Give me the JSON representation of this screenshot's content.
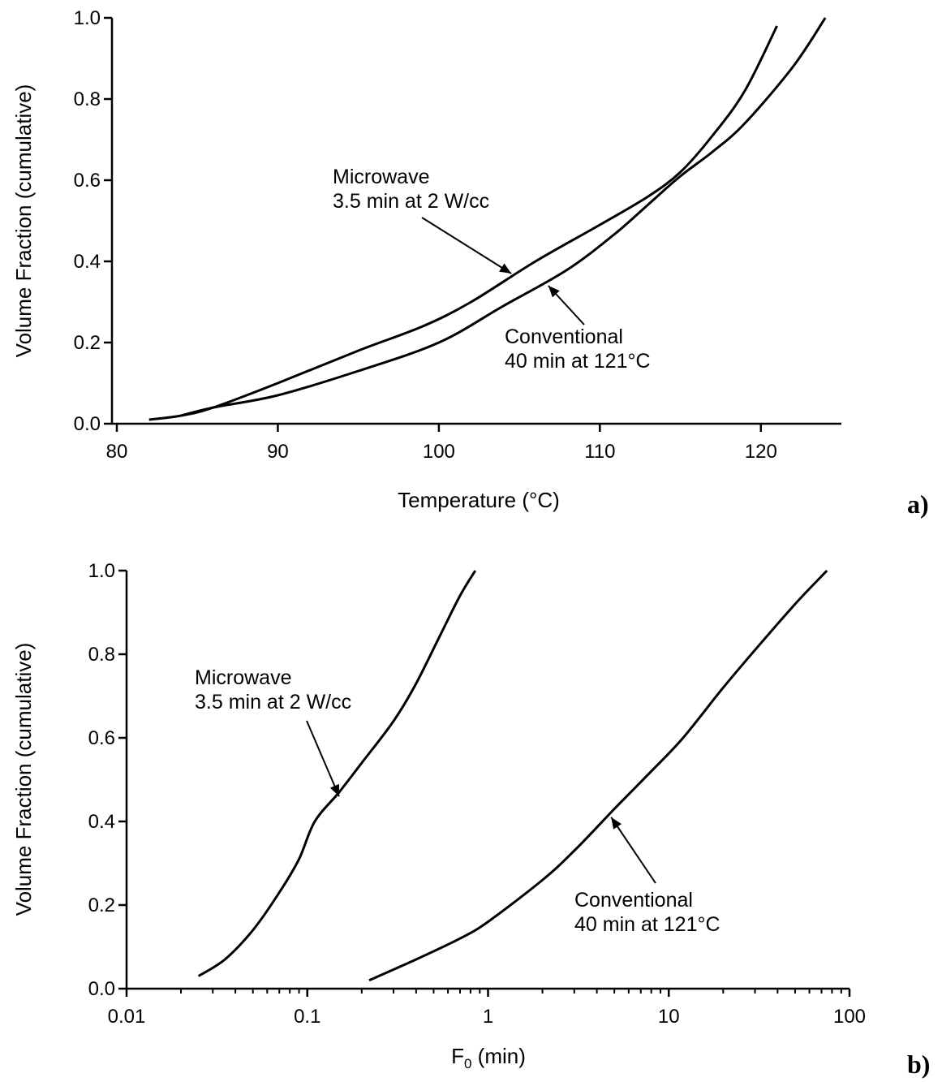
{
  "chart_data": [
    {
      "type": "line",
      "panel_label": "a)",
      "xlabel": "Temperature (°C)",
      "ylabel": "Volume Fraction (cumulative)",
      "xscale": "linear",
      "xlim": [
        80,
        125
      ],
      "ylim": [
        0,
        1.0
      ],
      "xticks": [
        80,
        90,
        100,
        110,
        120
      ],
      "xtick_labels": [
        "80",
        "90",
        "100",
        "110",
        "120"
      ],
      "yticks": [
        0,
        0.2,
        0.4,
        0.6,
        0.8,
        1.0
      ],
      "ytick_labels": [
        "0.0",
        "0.2",
        "0.4",
        "0.6",
        "0.8",
        "1.0"
      ],
      "series": [
        {
          "label_lines": [
            "Microwave",
            "3.5 min at 2 W/cc"
          ],
          "x": [
            82,
            84,
            86,
            90,
            95,
            99,
            102,
            106,
            110,
            113,
            115,
            117,
            119,
            121
          ],
          "y": [
            0.01,
            0.02,
            0.04,
            0.1,
            0.18,
            0.24,
            0.3,
            0.4,
            0.49,
            0.56,
            0.62,
            0.71,
            0.82,
            0.98
          ]
        },
        {
          "label_lines": [
            "Conventional",
            "40 min at 121°C"
          ],
          "x": [
            84,
            86,
            90,
            95,
            100,
            104,
            108,
            111,
            113,
            115,
            117,
            119,
            122,
            124
          ],
          "y": [
            0.02,
            0.04,
            0.07,
            0.13,
            0.2,
            0.29,
            0.38,
            0.47,
            0.54,
            0.61,
            0.67,
            0.74,
            0.88,
            1.0
          ]
        }
      ],
      "annotations": [
        {
          "series": 0,
          "lines": [
            "Microwave",
            "3.5 min at 2 W/cc"
          ],
          "points_to": [
            104.5,
            0.37
          ]
        },
        {
          "series": 1,
          "lines": [
            "Conventional",
            "40 min at 121°C"
          ],
          "points_to": [
            106.8,
            0.34
          ]
        }
      ]
    },
    {
      "type": "line",
      "panel_label": "b)",
      "xlabel": "F",
      "xlabel_sub": "0",
      "xlabel_unit": " (min)",
      "ylabel": "Volume Fraction (cumulative)",
      "xscale": "log",
      "xlim": [
        0.01,
        100
      ],
      "ylim": [
        0,
        1.0
      ],
      "xticks": [
        0.01,
        0.1,
        1,
        10,
        100
      ],
      "xtick_labels": [
        "0.01",
        "0.1",
        "1",
        "10",
        "100"
      ],
      "yticks": [
        0,
        0.2,
        0.4,
        0.6,
        0.8,
        1.0
      ],
      "ytick_labels": [
        "0.0",
        "0.2",
        "0.4",
        "0.6",
        "0.8",
        "1.0"
      ],
      "series": [
        {
          "label_lines": [
            "Microwave",
            "3.5 min at 2 W/cc"
          ],
          "x": [
            0.025,
            0.035,
            0.05,
            0.07,
            0.09,
            0.11,
            0.15,
            0.2,
            0.3,
            0.4,
            0.55,
            0.7,
            0.85
          ],
          "y": [
            0.03,
            0.07,
            0.14,
            0.23,
            0.31,
            0.4,
            0.47,
            0.54,
            0.64,
            0.73,
            0.85,
            0.94,
            1.0
          ]
        },
        {
          "label_lines": [
            "Conventional",
            "40 min at 121°C"
          ],
          "x": [
            0.22,
            0.4,
            0.7,
            1.0,
            2.0,
            3.0,
            5.0,
            8.0,
            12.0,
            20.0,
            30.0,
            50.0,
            75.0
          ],
          "y": [
            0.02,
            0.07,
            0.12,
            0.16,
            0.26,
            0.33,
            0.43,
            0.52,
            0.6,
            0.72,
            0.81,
            0.92,
            1.0
          ]
        }
      ],
      "annotations": [
        {
          "series": 0,
          "lines": [
            "Microwave",
            "3.5 min at 2 W/cc"
          ],
          "points_to": [
            0.15,
            0.46
          ]
        },
        {
          "series": 1,
          "lines": [
            "Conventional",
            "40 min at 121°C"
          ],
          "points_to": [
            4.8,
            0.41
          ]
        }
      ]
    }
  ]
}
